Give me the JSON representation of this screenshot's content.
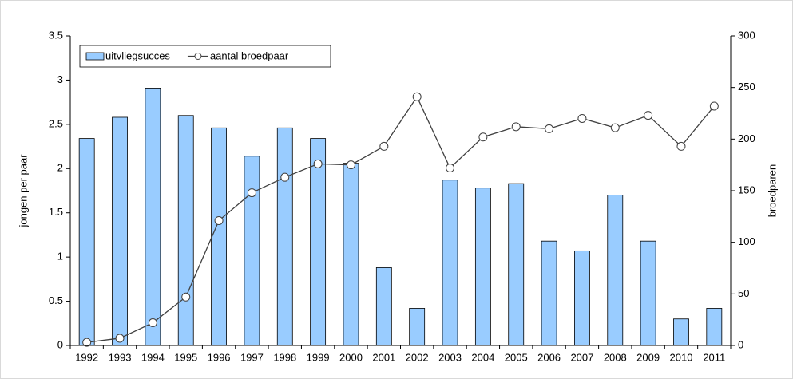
{
  "chart_data": {
    "type": "bar-line",
    "y_label": "jongen per paar",
    "y2_label": "broedparen",
    "categories": [
      "1992",
      "1993",
      "1994",
      "1995",
      "1996",
      "1997",
      "1998",
      "1999",
      "2000",
      "2001",
      "2002",
      "2003",
      "2004",
      "2005",
      "2006",
      "2007",
      "2008",
      "2009",
      "2010",
      "2011"
    ],
    "series": [
      {
        "name": "uitvliegsucces",
        "type": "bar",
        "color": "#99ccff",
        "values": [
          2.34,
          2.58,
          2.91,
          2.6,
          2.46,
          2.14,
          2.46,
          2.34,
          2.06,
          0.88,
          0.42,
          1.87,
          1.78,
          1.83,
          1.18,
          1.07,
          1.7,
          1.18,
          0.3,
          0.42
        ]
      },
      {
        "name": "aantal broedpaar",
        "type": "line",
        "axis": "y2",
        "color": "#404040",
        "values": [
          3,
          7,
          22,
          47,
          121,
          148,
          163,
          176,
          175,
          193,
          241,
          172,
          202,
          212,
          210,
          220,
          211,
          223,
          193,
          232
        ]
      }
    ],
    "ylim": [
      0,
      3.5
    ],
    "yticks": [
      0,
      0.5,
      1,
      1.5,
      2,
      2.5,
      3,
      3.5
    ],
    "y2lim": [
      0,
      300
    ],
    "y2ticks": [
      0,
      50,
      100,
      150,
      200,
      250,
      300
    ],
    "grid": false,
    "legend": "top-left"
  }
}
